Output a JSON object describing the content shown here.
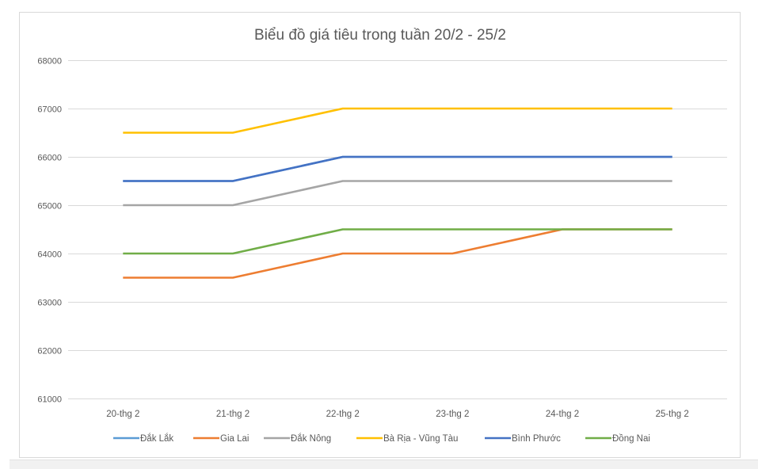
{
  "chart_data": {
    "type": "line",
    "title": "Biểu đồ giá tiêu trong tuần 20/2 - 25/2",
    "xlabel": "",
    "ylabel": "",
    "categories": [
      "20-thg 2",
      "21-thg 2",
      "22-thg 2",
      "23-thg 2",
      "24-thg 2",
      "25-thg 2"
    ],
    "ylim": [
      61000,
      68000
    ],
    "yticks": [
      61000,
      62000,
      63000,
      64000,
      65000,
      66000,
      67000,
      68000
    ],
    "grid": true,
    "legend_position": "bottom",
    "series": [
      {
        "name": "Đắk Lắk",
        "color": "#5B9BD5",
        "values": [
          65500,
          65500,
          66000,
          66000,
          66000,
          66000
        ]
      },
      {
        "name": "Gia Lai",
        "color": "#ED7D31",
        "values": [
          63500,
          63500,
          64000,
          64000,
          64500,
          64500
        ]
      },
      {
        "name": "Đắk Nông",
        "color": "#A5A5A5",
        "values": [
          65000,
          65000,
          65500,
          65500,
          65500,
          65500
        ]
      },
      {
        "name": "Bà Rịa - Vũng Tàu",
        "color": "#FFC000",
        "values": [
          66500,
          66500,
          67000,
          67000,
          67000,
          67000
        ]
      },
      {
        "name": "Bình Phước",
        "color": "#4472C4",
        "values": [
          65500,
          65500,
          66000,
          66000,
          66000,
          66000
        ]
      },
      {
        "name": "Đồng Nai",
        "color": "#70AD47",
        "values": [
          64000,
          64000,
          64500,
          64500,
          64500,
          64500
        ]
      }
    ]
  }
}
